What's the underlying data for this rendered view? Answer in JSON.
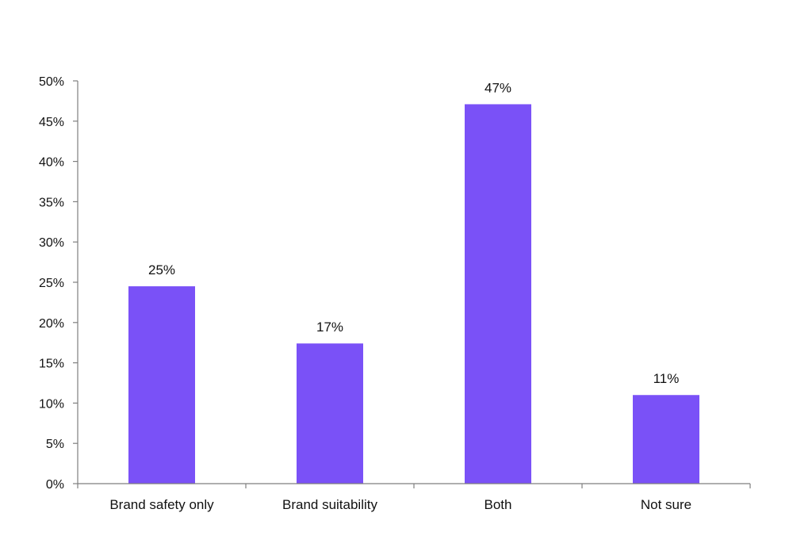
{
  "chart_data": {
    "type": "bar",
    "categories": [
      "Brand safety only",
      "Brand suitability",
      "Both",
      "Not sure"
    ],
    "values": [
      24.5,
      17.4,
      47.1,
      11.0
    ],
    "data_labels": [
      "25%",
      "17%",
      "47%",
      "11%"
    ],
    "y_ticks": [
      0,
      5,
      10,
      15,
      20,
      25,
      30,
      35,
      40,
      45,
      50
    ],
    "y_tick_labels": [
      "0%",
      "5%",
      "10%",
      "15%",
      "20%",
      "25%",
      "30%",
      "35%",
      "40%",
      "45%",
      "50%"
    ],
    "ylim": [
      0,
      50
    ],
    "grid": false,
    "legend": "none",
    "bar_color": "#7a51f7",
    "axis_color": "#7f7f7f"
  }
}
